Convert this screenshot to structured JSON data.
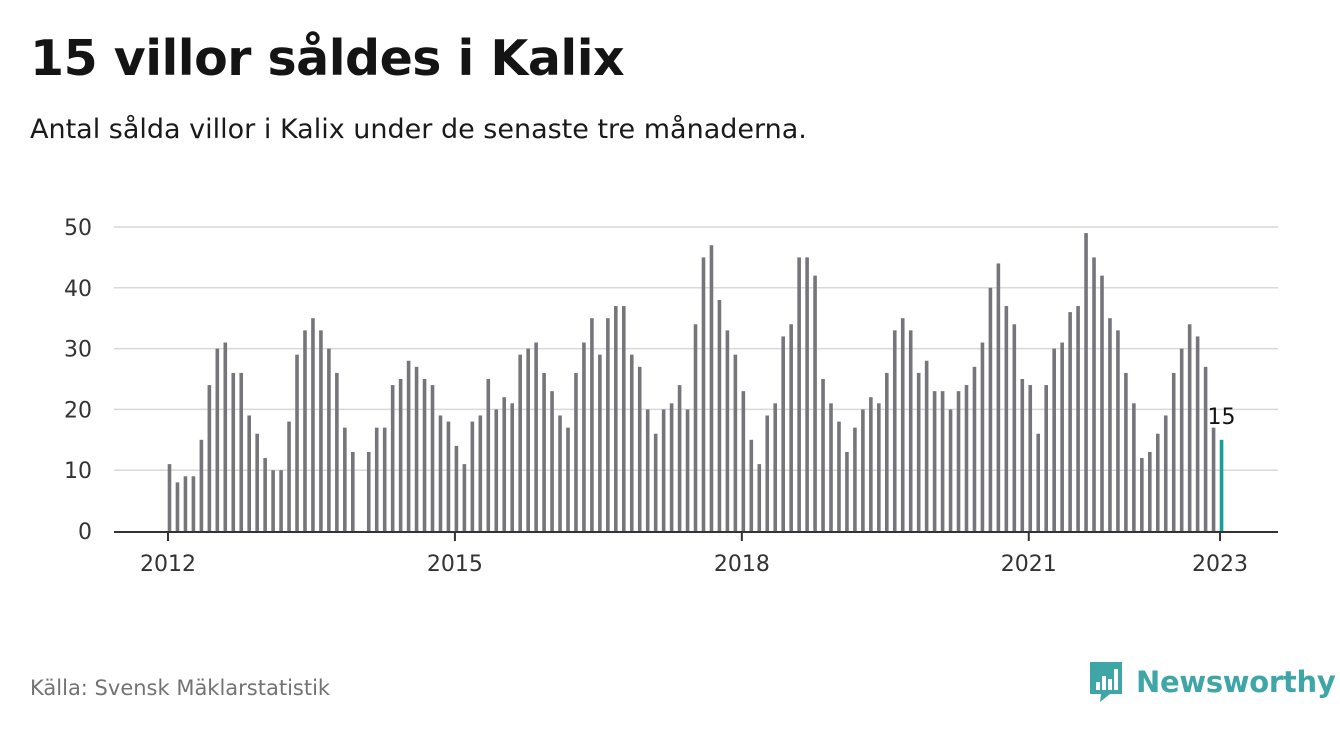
{
  "header": {
    "title": "15 villor såldes i Kalix",
    "subtitle": "Antal sålda villor i Kalix under de senaste tre månaderna."
  },
  "footer": {
    "source": "Källa: Svensk Mäklarstatistik",
    "brand": "Newsworthy"
  },
  "colors": {
    "bar": "#76757b",
    "highlight": "#1a9e99",
    "grid": "#d9d9d9",
    "axis": "#333333",
    "brand": "#3ea6a6"
  },
  "chart_data": {
    "type": "bar",
    "title": "15 villor såldes i Kalix",
    "subtitle": "Antal sålda villor i Kalix under de senaste tre månaderna.",
    "xlabel": "",
    "ylabel": "",
    "ylim": [
      0,
      50
    ],
    "yticks": [
      0,
      10,
      20,
      30,
      40,
      50
    ],
    "grid": true,
    "x_start": "2012-01",
    "x_end": "2023-01",
    "xticks": [
      {
        "label": "2012",
        "index": 0
      },
      {
        "label": "2015",
        "index": 36
      },
      {
        "label": "2018",
        "index": 72
      },
      {
        "label": "2021",
        "index": 108
      },
      {
        "label": "2023",
        "index": 132
      }
    ],
    "values": [
      11,
      8,
      9,
      9,
      15,
      24,
      30,
      31,
      26,
      26,
      19,
      16,
      12,
      10,
      10,
      18,
      29,
      33,
      35,
      33,
      30,
      26,
      17,
      13,
      null,
      13,
      17,
      17,
      24,
      25,
      28,
      27,
      25,
      24,
      19,
      18,
      14,
      11,
      18,
      19,
      25,
      20,
      22,
      21,
      29,
      30,
      31,
      26,
      23,
      19,
      17,
      26,
      31,
      35,
      29,
      35,
      37,
      37,
      29,
      27,
      20,
      16,
      20,
      21,
      24,
      20,
      34,
      45,
      47,
      38,
      33,
      29,
      23,
      15,
      11,
      19,
      21,
      32,
      34,
      45,
      45,
      42,
      25,
      21,
      18,
      13,
      17,
      20,
      22,
      21,
      26,
      33,
      35,
      33,
      26,
      28,
      23,
      23,
      20,
      23,
      24,
      27,
      31,
      40,
      44,
      37,
      34,
      25,
      24,
      16,
      24,
      30,
      31,
      36,
      37,
      49,
      45,
      42,
      35,
      33,
      26,
      21,
      12,
      13,
      16,
      19,
      26,
      30,
      34,
      32,
      27,
      17,
      15
    ],
    "highlight_index": 132,
    "annotations": [
      {
        "index": 132,
        "text": "15"
      }
    ]
  }
}
